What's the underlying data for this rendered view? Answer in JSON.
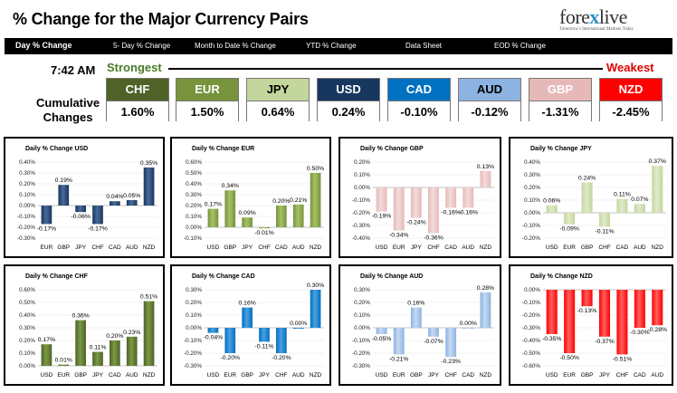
{
  "header": {
    "title": "% Change for the Major Currency Pairs",
    "logo": {
      "text_a": "fore",
      "text_x": "x",
      "text_b": "live",
      "tagline": "Tomorrow's International Markets Today"
    }
  },
  "tabs": [
    {
      "label": "Day % Change",
      "active": true
    },
    {
      "label": "5- Day % Change",
      "active": false
    },
    {
      "label": "Month to Date % Change",
      "active": false
    },
    {
      "label": "YTD % Change",
      "active": false
    },
    {
      "label": "Data Sheet",
      "active": false
    },
    {
      "label": "EOD % Change",
      "active": false
    }
  ],
  "summary": {
    "time": "7:42 AM",
    "strongest_label": "Strongest",
    "weakest_label": "Weakest",
    "cumulative_line1": "Cumulative",
    "cumulative_line2": "Changes",
    "currencies": [
      {
        "name": "CHF",
        "value": "1.60%",
        "color": "#4f6228"
      },
      {
        "name": "EUR",
        "value": "1.50%",
        "color": "#77933c"
      },
      {
        "name": "JPY",
        "value": "0.64%",
        "color": "#c3d69b",
        "text": "#000000"
      },
      {
        "name": "USD",
        "value": "0.24%",
        "color": "#17375e"
      },
      {
        "name": "CAD",
        "value": "-0.10%",
        "color": "#0070c0"
      },
      {
        "name": "AUD",
        "value": "-0.12%",
        "color": "#8db3e2",
        "text": "#000000"
      },
      {
        "name": "GBP",
        "value": "-1.31%",
        "color": "#e6b9b8"
      },
      {
        "name": "NZD",
        "value": "-2.45%",
        "color": "#ff0000"
      }
    ]
  },
  "chart_data": [
    {
      "type": "bar",
      "title": "Daily % Change USD",
      "color": "#17375e",
      "color_light": "#4a6a98",
      "categories": [
        "EUR",
        "GBP",
        "JPY",
        "CHF",
        "CAD",
        "AUD",
        "NZD"
      ],
      "values": [
        -0.17,
        0.19,
        -0.06,
        -0.17,
        0.04,
        0.05,
        0.35
      ],
      "labels": [
        "-0.17%",
        "0.19%",
        "-0.06%",
        "-0.17%",
        "0.04%",
        "0.05%",
        "0.35%"
      ],
      "yticks": [
        "0.40%",
        "0.30%",
        "0.20%",
        "0.10%",
        "0.00%",
        "-0.10%",
        "-0.20%",
        "-0.30%"
      ],
      "ylim": [
        -0.3,
        0.4
      ]
    },
    {
      "type": "bar",
      "title": "Daily % Change EUR",
      "color": "#77933c",
      "color_light": "#a5c266",
      "categories": [
        "USD",
        "GBP",
        "JPY",
        "CHF",
        "CAD",
        "AUD",
        "NZD"
      ],
      "values": [
        0.17,
        0.34,
        0.09,
        -0.01,
        0.2,
        0.21,
        0.5
      ],
      "labels": [
        "0.17%",
        "0.34%",
        "0.09%",
        "-0.01%",
        "0.20%",
        "0.21%",
        "0.50%"
      ],
      "yticks": [
        "0.60%",
        "0.50%",
        "0.40%",
        "0.30%",
        "0.20%",
        "0.10%",
        "0.00%",
        "-0.10%"
      ],
      "ylim": [
        -0.1,
        0.6
      ]
    },
    {
      "type": "bar",
      "title": "Daily % Change GBP",
      "color": "#e6b9b8",
      "color_light": "#f2dcdb",
      "categories": [
        "USD",
        "EUR",
        "JPY",
        "CHF",
        "CAD",
        "AUD",
        "NZD"
      ],
      "values": [
        -0.19,
        -0.34,
        -0.24,
        -0.36,
        -0.16,
        -0.16,
        0.13
      ],
      "labels": [
        "-0.19%",
        "-0.34%",
        "-0.24%",
        "-0.36%",
        "-0.16%",
        "-0.16%",
        "0.13%"
      ],
      "yticks": [
        "0.20%",
        "0.10%",
        "0.00%",
        "-0.10%",
        "-0.20%",
        "-0.30%",
        "-0.40%"
      ],
      "ylim": [
        -0.4,
        0.2
      ]
    },
    {
      "type": "bar",
      "title": "Daily % Change JPY",
      "color": "#c3d69b",
      "color_light": "#dfeacb",
      "categories": [
        "USD",
        "EUR",
        "GBP",
        "CHF",
        "CAD",
        "AUD",
        "NZD"
      ],
      "values": [
        0.06,
        -0.09,
        0.24,
        -0.11,
        0.11,
        0.07,
        0.37
      ],
      "labels": [
        "0.06%",
        "-0.09%",
        "0.24%",
        "-0.11%",
        "0.11%",
        "0.07%",
        "0.37%"
      ],
      "yticks": [
        "0.40%",
        "0.30%",
        "0.20%",
        "0.10%",
        "0.00%",
        "-0.10%",
        "-0.20%"
      ],
      "ylim": [
        -0.2,
        0.4
      ]
    },
    {
      "type": "bar",
      "title": "Daily % Change CHF",
      "color": "#4f6228",
      "color_light": "#7a9a44",
      "categories": [
        "USD",
        "EUR",
        "GBP",
        "JPY",
        "CAD",
        "AUD",
        "NZD"
      ],
      "values": [
        0.17,
        0.01,
        0.36,
        0.11,
        0.2,
        0.23,
        0.51
      ],
      "labels": [
        "0.17%",
        "0.01%",
        "0.36%",
        "0.11%",
        "0.20%",
        "0.23%",
        "0.51%"
      ],
      "yticks": [
        "0.60%",
        "0.50%",
        "0.40%",
        "0.30%",
        "0.20%",
        "0.10%",
        "0.00%"
      ],
      "ylim": [
        0,
        0.6
      ]
    },
    {
      "type": "bar",
      "title": "Daily % Change CAD",
      "color": "#0070c0",
      "color_light": "#4aa0e0",
      "categories": [
        "USD",
        "EUR",
        "GBP",
        "JPY",
        "CHF",
        "AUD",
        "NZD"
      ],
      "values": [
        -0.04,
        -0.2,
        0.16,
        -0.11,
        -0.2,
        0.0,
        0.3
      ],
      "labels": [
        "-0.04%",
        "-0.20%",
        "0.16%",
        "-0.11%",
        "-0.20%",
        "0.00%",
        "0.30%"
      ],
      "yticks": [
        "0.30%",
        "0.20%",
        "0.10%",
        "0.00%",
        "-0.10%",
        "-0.20%",
        "-0.30%"
      ],
      "ylim": [
        -0.3,
        0.3
      ]
    },
    {
      "type": "bar",
      "title": "Daily % Change AUD",
      "color": "#8db3e2",
      "color_light": "#c6d9f1",
      "categories": [
        "USD",
        "EUR",
        "GBP",
        "JPY",
        "CHF",
        "CAD",
        "NZD"
      ],
      "values": [
        -0.05,
        -0.21,
        0.16,
        -0.07,
        -0.23,
        0.0,
        0.28
      ],
      "labels": [
        "-0.05%",
        "-0.21%",
        "0.16%",
        "-0.07%",
        "-0.23%",
        "0.00%",
        "0.28%"
      ],
      "yticks": [
        "0.30%",
        "0.20%",
        "0.10%",
        "0.00%",
        "-0.10%",
        "-0.20%",
        "-0.30%"
      ],
      "ylim": [
        -0.3,
        0.3
      ]
    },
    {
      "type": "bar",
      "title": "Daily % Change NZD",
      "color": "#ff0000",
      "color_light": "#ff6060",
      "categories": [
        "USD",
        "EUR",
        "GBP",
        "JPY",
        "CHF",
        "CAD",
        "AUD"
      ],
      "values": [
        -0.35,
        -0.5,
        -0.13,
        -0.37,
        -0.51,
        -0.3,
        -0.28
      ],
      "labels": [
        "-0.35%",
        "-0.50%",
        "-0.13%",
        "-0.37%",
        "-0.51%",
        "-0.30%",
        "-0.28%"
      ],
      "yticks": [
        "0.00%",
        "-0.10%",
        "-0.20%",
        "-0.30%",
        "-0.40%",
        "-0.50%",
        "-0.60%"
      ],
      "ylim": [
        -0.6,
        0
      ]
    }
  ]
}
